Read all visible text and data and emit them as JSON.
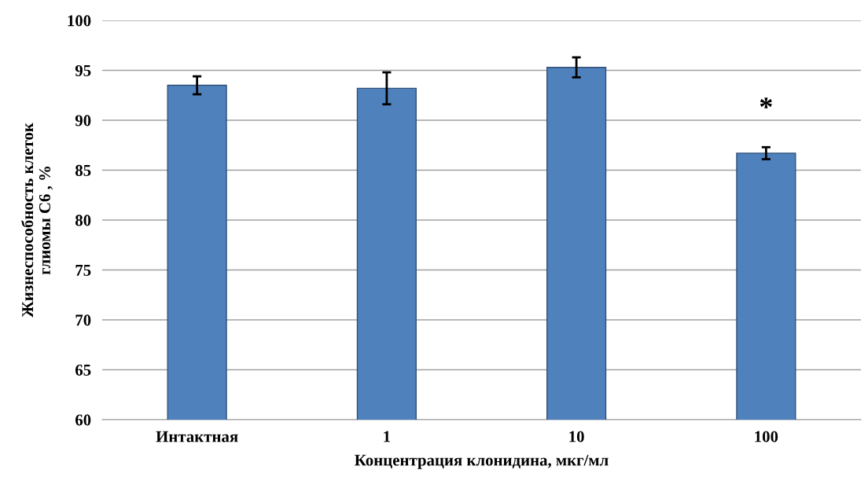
{
  "chart_data": {
    "type": "bar",
    "xlabel": "Концентрация клонидина, мкг/мл",
    "ylabel": "Жизнеспособность клеток\nглиомы С6 , %",
    "categories": [
      "Интактная",
      "1",
      "10",
      "100"
    ],
    "values": [
      93.5,
      93.2,
      95.3,
      86.7
    ],
    "errors": [
      0.9,
      1.6,
      1.0,
      0.6
    ],
    "color": "#4f81bd",
    "ylim": [
      60,
      100
    ],
    "yticks": [
      60,
      65,
      70,
      75,
      80,
      85,
      90,
      95,
      100
    ],
    "grid": "y",
    "annotations": [
      {
        "text": "*",
        "x": "100",
        "y": 86.7
      }
    ]
  }
}
